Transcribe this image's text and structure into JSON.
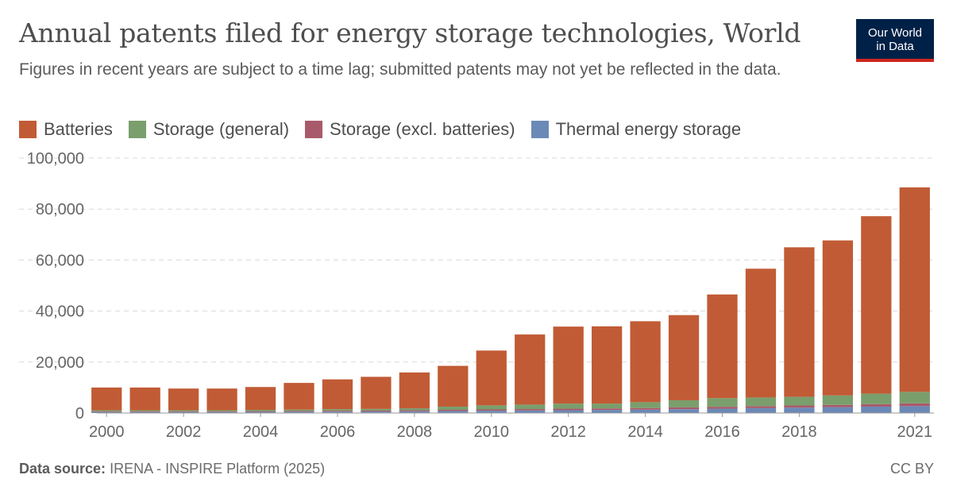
{
  "header": {
    "title": "Annual patents filed for energy storage technologies, World",
    "subtitle": "Figures in recent years are subject to a time lag; submitted patents may not yet be reflected in the data."
  },
  "logo": {
    "line1": "Our World",
    "line2": "in Data"
  },
  "footer": {
    "source_label": "Data source:",
    "source_text": "IRENA - INSPIRE Platform (2025)",
    "license": "CC BY"
  },
  "colors": {
    "batteries": "#c15b35",
    "storage_general": "#7a9e6c",
    "storage_excl_batteries": "#a85a6a",
    "thermal": "#6b89b6",
    "grid": "#d9d9d9",
    "axis": "#999999"
  },
  "chart_data": {
    "type": "bar",
    "stacked": true,
    "x": [
      2000,
      2001,
      2002,
      2003,
      2004,
      2005,
      2006,
      2007,
      2008,
      2009,
      2010,
      2011,
      2012,
      2013,
      2014,
      2015,
      2016,
      2017,
      2018,
      2019,
      2020,
      2021
    ],
    "x_tick_labels": [
      "2000",
      "2002",
      "2004",
      "2006",
      "2008",
      "2010",
      "2012",
      "2014",
      "2016",
      "2018",
      "2021"
    ],
    "y_tick_labels": [
      "0",
      "20,000",
      "40,000",
      "60,000",
      "80,000",
      "100,000"
    ],
    "ylim": [
      0,
      100000
    ],
    "grid": true,
    "legend_position": "top-left",
    "series": [
      {
        "name": "Thermal energy storage",
        "color": "#6b89b6",
        "values": [
          400,
          400,
          400,
          400,
          450,
          500,
          550,
          600,
          700,
          800,
          900,
          1000,
          1100,
          1200,
          1300,
          1500,
          1700,
          1900,
          2100,
          2300,
          2500,
          2700
        ]
      },
      {
        "name": "Storage (excl. batteries)",
        "color": "#a85a6a",
        "values": [
          250,
          250,
          250,
          250,
          300,
          300,
          350,
          350,
          400,
          450,
          500,
          550,
          600,
          600,
          650,
          700,
          750,
          800,
          850,
          900,
          1000,
          1100
        ]
      },
      {
        "name": "Storage (general)",
        "color": "#7a9e6c",
        "values": [
          450,
          450,
          450,
          450,
          500,
          550,
          600,
          650,
          750,
          1250,
          1600,
          1750,
          2000,
          1900,
          2300,
          2800,
          3400,
          3400,
          3400,
          3700,
          4100,
          4500
        ]
      },
      {
        "name": "Batteries",
        "color": "#c15b35",
        "values": [
          8900,
          8900,
          8500,
          8500,
          8950,
          10450,
          11700,
          12600,
          14050,
          16000,
          21500,
          27500,
          30200,
          30300,
          31750,
          33400,
          40650,
          50500,
          58650,
          60800,
          69600,
          80200
        ]
      }
    ],
    "legend_order": [
      "Batteries",
      "Storage (general)",
      "Storage (excl. batteries)",
      "Thermal energy storage"
    ]
  }
}
